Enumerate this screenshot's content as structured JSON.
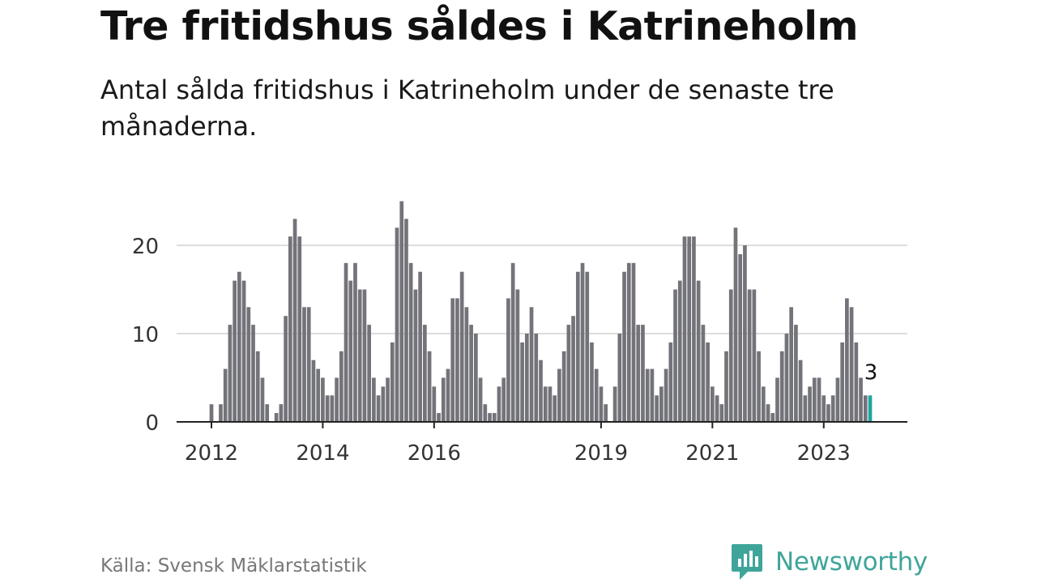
{
  "title": "Tre fritidshus såldes i Katrineholm",
  "subtitle": "Antal sålda fritidshus i Katrineholm under de senaste tre månaderna.",
  "source": "Källa: Svensk Mäklarstatistik",
  "brand": {
    "name": "Newsworthy",
    "icon": "newsworthy-logo-icon",
    "color": "#3fa59a"
  },
  "colors": {
    "bar": "#73737a",
    "highlight": "#1fa5a0",
    "grid": "#dddddd",
    "axis": "#222222"
  },
  "chart_data": {
    "type": "bar",
    "x_start": "2012-01",
    "x_step": "month",
    "ylim": [
      0,
      26
    ],
    "y_ticks": [
      0,
      10,
      20
    ],
    "x_tick_labels": [
      "2012",
      "2014",
      "2016",
      "2019",
      "2021",
      "2023"
    ],
    "x_tick_years": [
      2012,
      2014,
      2016,
      2019,
      2021,
      2023
    ],
    "grid": "horizontal",
    "values": [
      2,
      0,
      2,
      6,
      11,
      16,
      17,
      16,
      13,
      11,
      8,
      5,
      2,
      0,
      1,
      2,
      12,
      21,
      23,
      21,
      13,
      13,
      7,
      6,
      5,
      3,
      3,
      5,
      8,
      18,
      16,
      18,
      15,
      15,
      11,
      5,
      3,
      4,
      5,
      9,
      22,
      25,
      23,
      18,
      15,
      17,
      11,
      8,
      4,
      1,
      5,
      6,
      14,
      14,
      17,
      13,
      11,
      10,
      5,
      2,
      1,
      1,
      4,
      5,
      14,
      18,
      15,
      9,
      10,
      13,
      10,
      7,
      4,
      4,
      3,
      6,
      8,
      11,
      12,
      17,
      18,
      17,
      9,
      6,
      4,
      2,
      0,
      4,
      10,
      17,
      18,
      18,
      11,
      11,
      6,
      6,
      3,
      4,
      6,
      9,
      15,
      16,
      21,
      21,
      21,
      16,
      11,
      9,
      4,
      3,
      2,
      8,
      15,
      22,
      19,
      20,
      15,
      15,
      8,
      4,
      2,
      1,
      5,
      8,
      10,
      13,
      11,
      7,
      3,
      4,
      5,
      5,
      3,
      2,
      3,
      5,
      9,
      14,
      13,
      9,
      5,
      3,
      3
    ],
    "highlight_last": true,
    "highlight_label": "3"
  }
}
